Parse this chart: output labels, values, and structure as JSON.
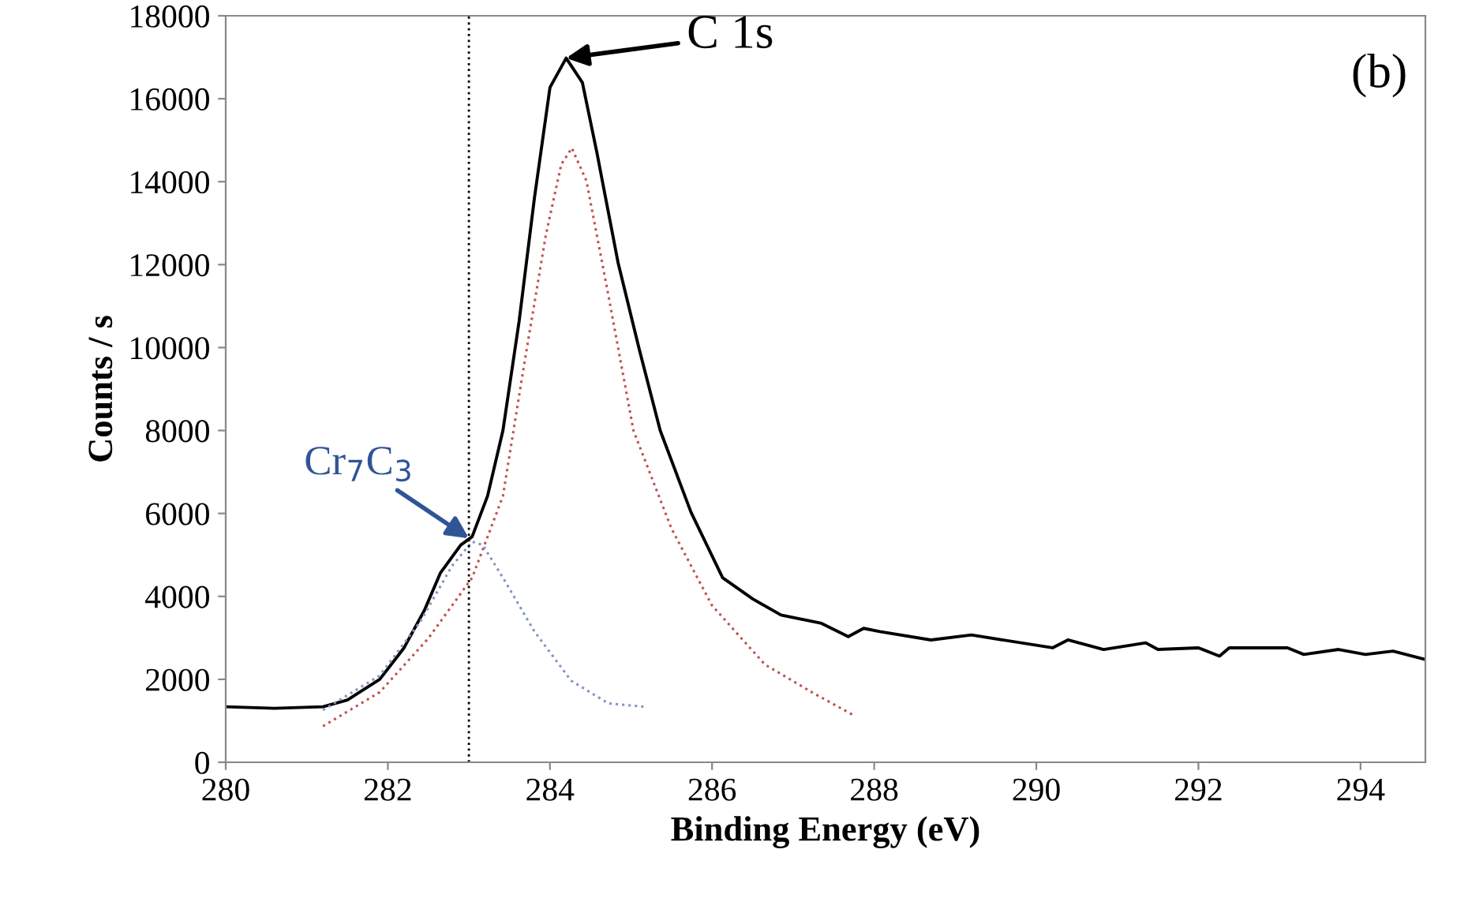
{
  "chart_data": {
    "type": "line",
    "xlabel": "Binding Energy (eV)",
    "ylabel": "Counts / s",
    "xlim": [
      280,
      294.8
    ],
    "xticks": [
      280,
      282,
      284,
      286,
      288,
      290,
      292,
      294
    ],
    "ylim": [
      0,
      18000
    ],
    "yticks": [
      0,
      2000,
      4000,
      6000,
      8000,
      10000,
      12000,
      14000,
      16000,
      18000
    ],
    "grid": false,
    "legend": false,
    "marker": "none",
    "series": [
      {
        "color": "#000000",
        "line_style": "solid",
        "x": [
          280.0,
          280.6,
          281.2,
          281.5,
          281.9,
          282.2,
          282.45,
          282.65,
          282.9,
          283.04,
          283.23,
          283.42,
          283.62,
          283.81,
          284.0,
          284.2,
          284.4,
          284.58,
          284.84,
          285.1,
          285.36,
          285.74,
          286.13,
          286.5,
          286.85,
          287.35,
          287.68,
          287.87,
          288.07,
          288.7,
          289.2,
          290.2,
          290.39,
          290.83,
          291.35,
          291.5,
          292.0,
          292.26,
          292.38,
          293.1,
          293.3,
          293.73,
          294.06,
          294.4,
          294.8
        ],
        "values": [
          1340,
          1300,
          1340,
          1500,
          2000,
          2760,
          3660,
          4570,
          5240,
          5440,
          6420,
          8000,
          10640,
          13630,
          16270,
          16980,
          16390,
          14690,
          12050,
          9970,
          8000,
          6030,
          4450,
          3940,
          3550,
          3350,
          3030,
          3230,
          3150,
          2950,
          3070,
          2760,
          2950,
          2720,
          2880,
          2720,
          2760,
          2560,
          2760,
          2760,
          2600,
          2720,
          2600,
          2680,
          2480
        ]
      },
      {
        "color": "#c0504d",
        "line_style": "dotted",
        "x": [
          281.2,
          281.9,
          282.5,
          283.04,
          283.42,
          283.68,
          283.95,
          284.14,
          284.27,
          284.45,
          284.72,
          285.03,
          285.5,
          286.0,
          286.65,
          287.23,
          287.74
        ],
        "values": [
          870,
          1690,
          2990,
          4450,
          6420,
          9570,
          12720,
          14420,
          14810,
          14020,
          11270,
          8000,
          5630,
          3780,
          2360,
          1690,
          1140
        ]
      },
      {
        "color": "#7f96c0",
        "line_style": "dotted",
        "x": [
          281.2,
          281.9,
          282.4,
          282.79,
          283.04,
          283.17,
          283.42,
          283.81,
          284.26,
          284.72,
          285.16
        ],
        "values": [
          1260,
          2090,
          3390,
          4730,
          5320,
          5240,
          4450,
          3150,
          1970,
          1420,
          1340
        ]
      }
    ],
    "ref_lines": [
      {
        "axis": "x",
        "value": 283,
        "color": "#000000",
        "line_style": "dotted"
      }
    ],
    "annotations": [
      {
        "text": "C 1s",
        "x": 284.2,
        "y": 16980
      },
      {
        "text": "Cr$_{7}$C$_{3}$",
        "x": 283.0,
        "y": 5400
      },
      "(b)"
    ]
  }
}
